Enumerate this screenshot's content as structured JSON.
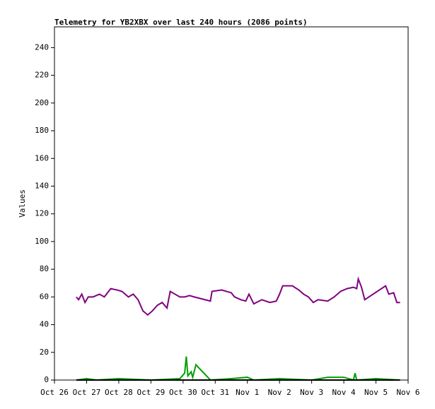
{
  "chart_data": {
    "type": "line",
    "title": "Telemetry for YB2XBX over last 240 hours (2086 points)",
    "y_label": "Values",
    "xlim": [
      0,
      11
    ],
    "xticks": [
      {
        "value": 0,
        "label": "Oct 26"
      },
      {
        "value": 1,
        "label": "Oct 27"
      },
      {
        "value": 2,
        "label": "Oct 28"
      },
      {
        "value": 3,
        "label": "Oct 29"
      },
      {
        "value": 4,
        "label": "Oct 30"
      },
      {
        "value": 5,
        "label": "Oct 31"
      },
      {
        "value": 6,
        "label": "Nov 1"
      },
      {
        "value": 7,
        "label": "Nov 2"
      },
      {
        "value": 8,
        "label": "Nov 3"
      },
      {
        "value": 9,
        "label": "Nov 4"
      },
      {
        "value": 10,
        "label": "Nov 5"
      },
      {
        "value": 11,
        "label": "Nov 6"
      }
    ],
    "ylim": [
      0,
      255
    ],
    "yticks": [
      0,
      20,
      40,
      60,
      80,
      100,
      120,
      140,
      160,
      180,
      200,
      220,
      240
    ],
    "series": [
      {
        "color": "#800080",
        "x": [
          0.68,
          0.75,
          0.85,
          0.95,
          1.05,
          1.2,
          1.4,
          1.55,
          1.75,
          1.95,
          2.1,
          2.3,
          2.45,
          2.6,
          2.75,
          2.9,
          3.05,
          3.2,
          3.35,
          3.5,
          3.6,
          3.75,
          3.9,
          4.05,
          4.2,
          4.35,
          4.85,
          4.9,
          5.2,
          5.5,
          5.6,
          5.8,
          5.95,
          6.05,
          6.2,
          6.45,
          6.7,
          6.9,
          7.0,
          7.1,
          7.4,
          7.6,
          7.75,
          7.9,
          8.05,
          8.2,
          8.5,
          8.7,
          8.9,
          9.1,
          9.3,
          9.4,
          9.45,
          9.55,
          9.65,
          10.3,
          10.4,
          10.55,
          10.65,
          10.75
        ],
        "values": [
          60,
          58,
          62,
          56,
          60,
          60,
          62,
          60,
          66,
          65,
          64,
          60,
          62,
          58,
          50,
          47,
          50,
          54,
          56,
          52,
          64,
          62,
          60,
          60,
          61,
          60,
          57,
          64,
          65,
          63,
          60,
          58,
          57,
          62,
          55,
          58,
          56,
          57,
          62,
          68,
          68,
          65,
          62,
          60,
          56,
          58,
          57,
          60,
          64,
          66,
          67,
          66,
          73,
          67,
          58,
          68,
          62,
          63,
          56,
          56
        ]
      },
      {
        "color": "#00a000",
        "x": [
          0.68,
          1.0,
          1.3,
          2.0,
          3.0,
          3.9,
          4.05,
          4.1,
          4.15,
          4.25,
          4.3,
          4.4,
          4.85,
          5.5,
          6.0,
          6.2,
          7.0,
          8.0,
          8.5,
          9.0,
          9.3,
          9.35,
          9.4,
          10.0,
          10.75
        ],
        "values": [
          0,
          1,
          0,
          1,
          0,
          1,
          5,
          17,
          3,
          6,
          2,
          11,
          0,
          1,
          2,
          0,
          1,
          0,
          2,
          2,
          0,
          5,
          0,
          1,
          0
        ]
      },
      {
        "color": "#000000",
        "x": [
          0.68,
          10.75
        ],
        "values": [
          0,
          0
        ]
      }
    ]
  }
}
